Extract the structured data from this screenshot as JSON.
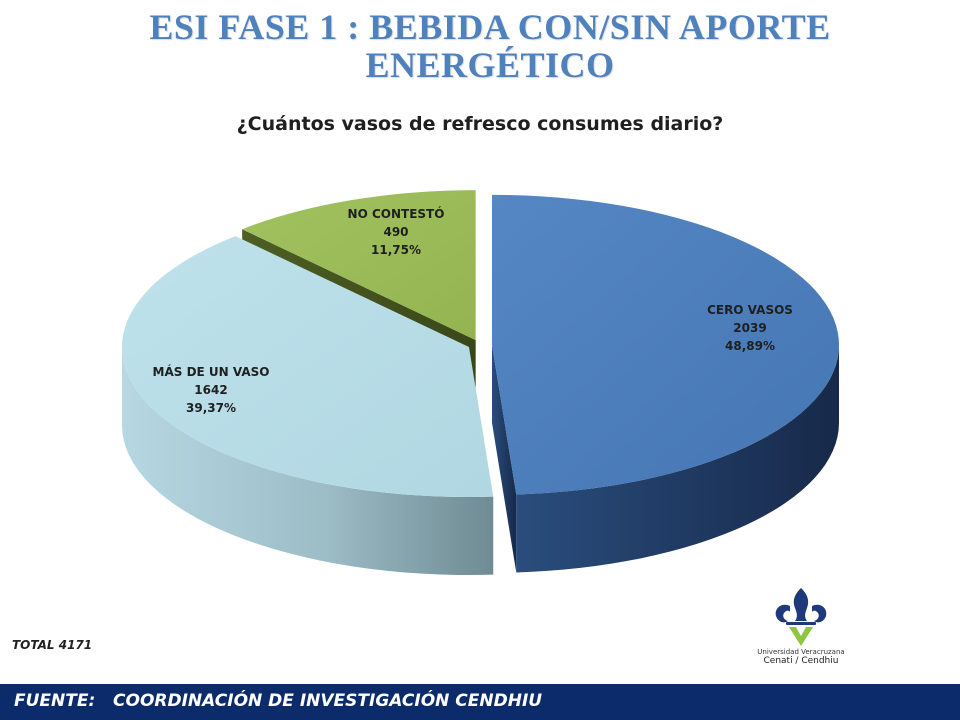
{
  "slide": {
    "title_line1": "ESI FASE 1 : BEBIDA CON/SIN APORTE",
    "title_line2": "ENERGÉTICO"
  },
  "chart_data": {
    "type": "pie",
    "style": "3d-exploded",
    "title": "¿Cuántos vasos de refresco consumes diario?",
    "legend": "none",
    "slices": [
      {
        "label": "CERO VASOS",
        "value": 2039,
        "percent": "48,89%",
        "color": "#4f81bd"
      },
      {
        "label": "MÁS DE UN VASO",
        "value": 1642,
        "percent": "39,37%",
        "color": "#b7dde8"
      },
      {
        "label": "NO CONTESTÓ",
        "value": 490,
        "percent": "11,75%",
        "color": "#9bbb59"
      }
    ]
  },
  "total_note": "TOTAL 4171",
  "logo": {
    "line1": "Universidad Veracruzana",
    "line2": "Cenati / Cendhiu",
    "colors": {
      "blue": "#1f3a7a",
      "green": "#8dc63f"
    }
  },
  "footer": {
    "text": "FUENTE:   COORDINACIÓN DE INVESTIGACIÓN CENDHIU",
    "background": "#0b2b6a"
  }
}
